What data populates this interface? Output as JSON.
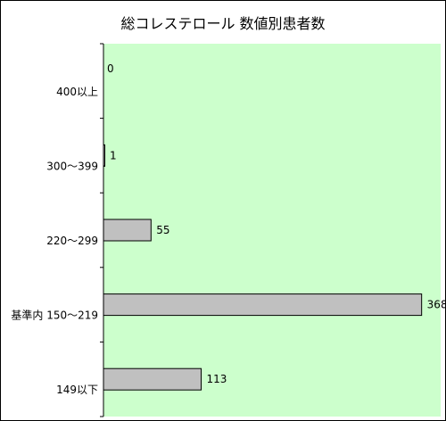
{
  "chart_data": {
    "type": "bar",
    "orientation": "horizontal",
    "title": "総コレステロール 数値別患者数",
    "categories": [
      "400以上",
      "300～399",
      "220～299",
      "基準内 150～219",
      "149以下"
    ],
    "values": [
      0,
      1,
      55,
      368,
      113
    ],
    "data_labels": [
      "0",
      "1",
      "55",
      "368",
      "113"
    ],
    "xlim": [
      0,
      390
    ],
    "grid": false,
    "legend": "none",
    "colors": {
      "plot_background": "#ccffcc",
      "bar_fill": "#c0c0c0",
      "bar_stroke": "#000000"
    }
  }
}
